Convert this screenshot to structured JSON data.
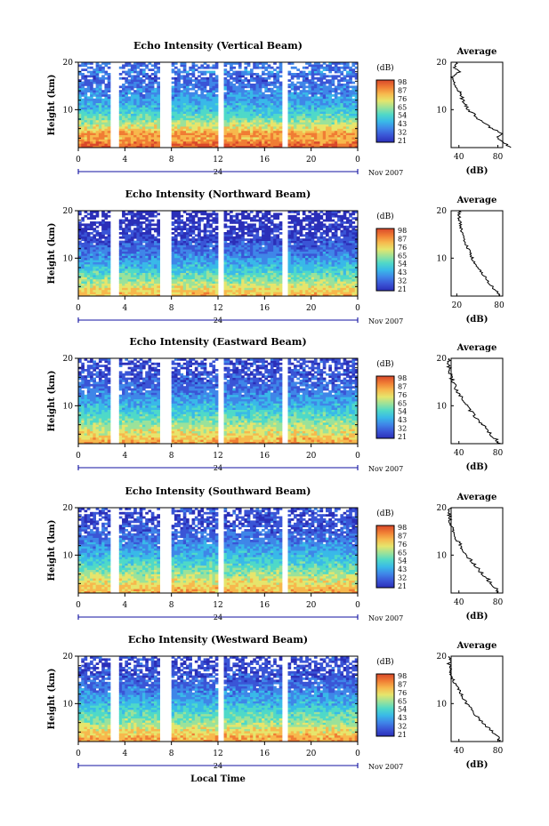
{
  "colors": {
    "scale": [
      "#2b2fb8",
      "#3a55d6",
      "#3f86e8",
      "#39b9e8",
      "#4fd9c8",
      "#9be29a",
      "#e6e56c",
      "#f7b84d",
      "#f07d34",
      "#d9482a"
    ],
    "axis_blue": "#1010a0",
    "average_line": "#000000"
  },
  "shared": {
    "y_label": "Height (km)",
    "x_ticks": [
      "0",
      "4",
      "8",
      "12",
      "16",
      "20",
      "0"
    ],
    "day_label": "24",
    "month_label": "Nov 2007",
    "colorbar_unit": "(dB)",
    "avg_title": "Average",
    "avg_unit": "(dB)",
    "x_axis_label": "Local Time",
    "y_ticks": [
      "20",
      "10"
    ]
  },
  "chart_data": [
    {
      "type": "heatmap",
      "title": "Echo Intensity (Vertical Beam)",
      "xlabel": "",
      "ylabel": "Height (km)",
      "xlim": [
        0,
        24
      ],
      "ylim": [
        2,
        20
      ],
      "colorbar_ticks": [
        "98",
        "87",
        "76",
        "65",
        "54",
        "43",
        "32",
        "21"
      ],
      "colorbar_range": [
        21,
        98
      ],
      "data_gaps_hours": [
        [
          2.7,
          3.6
        ],
        [
          7.0,
          7.9
        ],
        [
          12.0,
          12.4
        ],
        [
          17.6,
          18.0
        ]
      ],
      "average_profile": {
        "title": "Average",
        "xlabel": "(dB)",
        "x_ticks": [
          "40",
          "80"
        ],
        "height_km": [
          2,
          3,
          4,
          5,
          6,
          8,
          10,
          12,
          14,
          16,
          17,
          18,
          19,
          20
        ],
        "db": [
          92,
          88,
          80,
          84,
          74,
          60,
          50,
          44,
          40,
          35,
          33,
          40,
          35,
          38
        ]
      }
    },
    {
      "type": "heatmap",
      "title": "Echo Intensity (Northward Beam)",
      "xlabel": "",
      "ylabel": "Height (km)",
      "xlim": [
        0,
        24
      ],
      "ylim": [
        2,
        20
      ],
      "colorbar_ticks": [
        "98",
        "87",
        "76",
        "65",
        "54",
        "43",
        "32",
        "21"
      ],
      "colorbar_range": [
        21,
        98
      ],
      "data_gaps_hours": [
        [
          2.7,
          3.6
        ],
        [
          7.0,
          7.9
        ],
        [
          12.0,
          12.4
        ],
        [
          17.6,
          18.0
        ]
      ],
      "average_profile": {
        "title": "Average",
        "xlabel": "(dB)",
        "x_ticks": [
          "20",
          "80"
        ],
        "height_km": [
          2,
          3,
          4,
          5,
          6,
          8,
          10,
          12,
          14,
          16,
          17,
          18,
          19,
          20
        ],
        "db": [
          80,
          76,
          70,
          64,
          60,
          50,
          42,
          36,
          30,
          26,
          25,
          24,
          23,
          24
        ]
      }
    },
    {
      "type": "heatmap",
      "title": "Echo Intensity (Eastward Beam)",
      "xlabel": "",
      "ylabel": "Height (km)",
      "xlim": [
        0,
        24
      ],
      "ylim": [
        2,
        20
      ],
      "colorbar_ticks": [
        "98",
        "87",
        "76",
        "65",
        "54",
        "43",
        "32",
        "21"
      ],
      "colorbar_range": [
        21,
        98
      ],
      "data_gaps_hours": [
        [
          2.7,
          3.6
        ],
        [
          7.0,
          7.9
        ],
        [
          12.0,
          12.4
        ],
        [
          17.6,
          18.0
        ]
      ],
      "average_profile": {
        "title": "Average",
        "xlabel": "(dB)",
        "x_ticks": [
          "40",
          "80"
        ],
        "height_km": [
          2,
          3,
          4,
          5,
          6,
          8,
          10,
          12,
          14,
          16,
          17,
          18,
          19,
          20
        ],
        "db": [
          82,
          78,
          72,
          70,
          64,
          56,
          48,
          42,
          36,
          32,
          31,
          30,
          30,
          31
        ]
      }
    },
    {
      "type": "heatmap",
      "title": "Echo Intensity (Southward Beam)",
      "xlabel": "",
      "ylabel": "Height (km)",
      "xlim": [
        0,
        24
      ],
      "ylim": [
        2,
        20
      ],
      "colorbar_ticks": [
        "98",
        "87",
        "76",
        "65",
        "54",
        "43",
        "32",
        "21"
      ],
      "colorbar_range": [
        21,
        98
      ],
      "data_gaps_hours": [
        [
          2.7,
          3.6
        ],
        [
          7.0,
          7.9
        ],
        [
          12.0,
          12.4
        ],
        [
          17.6,
          18.0
        ]
      ],
      "average_profile": {
        "title": "Average",
        "xlabel": "(dB)",
        "x_ticks": [
          "40",
          "80"
        ],
        "height_km": [
          2,
          3,
          4,
          5,
          6,
          8,
          10,
          12,
          14,
          16,
          17,
          18,
          19,
          20
        ],
        "db": [
          80,
          78,
          72,
          70,
          64,
          56,
          48,
          42,
          36,
          32,
          31,
          30,
          30,
          31
        ]
      }
    },
    {
      "type": "heatmap",
      "title": "Echo Intensity (Westward Beam)",
      "xlabel": "Local Time",
      "ylabel": "Height (km)",
      "xlim": [
        0,
        24
      ],
      "ylim": [
        2,
        20
      ],
      "colorbar_ticks": [
        "98",
        "87",
        "76",
        "65",
        "54",
        "43",
        "32",
        "21"
      ],
      "colorbar_range": [
        21,
        98
      ],
      "data_gaps_hours": [
        [
          2.7,
          3.6
        ],
        [
          7.0,
          7.9
        ],
        [
          12.0,
          12.4
        ],
        [
          17.6,
          18.0
        ]
      ],
      "average_profile": {
        "title": "Average",
        "xlabel": "(dB)",
        "x_ticks": [
          "40",
          "80"
        ],
        "height_km": [
          2,
          3,
          4,
          5,
          6,
          8,
          10,
          12,
          14,
          16,
          17,
          18,
          19,
          20
        ],
        "db": [
          82,
          80,
          74,
          70,
          64,
          56,
          48,
          42,
          36,
          32,
          31,
          30,
          30,
          31
        ]
      }
    }
  ]
}
